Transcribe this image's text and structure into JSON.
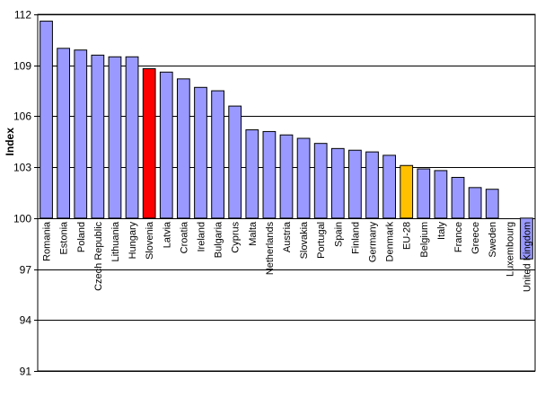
{
  "chart_data": {
    "type": "bar",
    "title": "",
    "xlabel": "",
    "ylabel": "Index",
    "ylim": [
      91,
      112
    ],
    "yticks": [
      91,
      94,
      97,
      100,
      103,
      106,
      109,
      112
    ],
    "baseline": 100,
    "grid": "horizontal",
    "categories": [
      "Romania",
      "Estonia",
      "Poland",
      "Czech Republic",
      "Lithuania",
      "Hungary",
      "Slovenia",
      "Latvia",
      "Croatia",
      "Ireland",
      "Bulgaria",
      "Cyprus",
      "Malta",
      "Netherlands",
      "Austria",
      "Slovakia",
      "Portugal",
      "Spain",
      "Finland",
      "Germany",
      "Denmark",
      "EU-28",
      "Belgium",
      "Italy",
      "France",
      "Greece",
      "Sweden",
      "Luxembourg",
      "United Kingdom"
    ],
    "values": [
      111.6,
      110.0,
      109.9,
      109.6,
      109.5,
      109.5,
      108.8,
      108.6,
      108.2,
      107.7,
      107.5,
      106.6,
      105.2,
      105.1,
      104.9,
      104.7,
      104.4,
      104.1,
      104.0,
      103.9,
      103.7,
      103.1,
      102.9,
      102.8,
      102.4,
      101.8,
      101.7,
      100.0,
      97.6
    ],
    "colors": {
      "default": "#9999ff",
      "highlight": "#ff0000",
      "aggregate": "#ffc000",
      "outline": "#000000"
    },
    "highlight_categories": {
      "Slovenia": "highlight",
      "EU-28": "aggregate"
    }
  }
}
